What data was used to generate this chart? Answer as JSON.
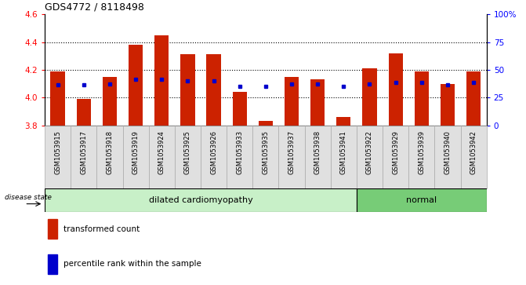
{
  "title": "GDS4772 / 8118498",
  "samples": [
    "GSM1053915",
    "GSM1053917",
    "GSM1053918",
    "GSM1053919",
    "GSM1053924",
    "GSM1053925",
    "GSM1053926",
    "GSM1053933",
    "GSM1053935",
    "GSM1053937",
    "GSM1053938",
    "GSM1053941",
    "GSM1053922",
    "GSM1053929",
    "GSM1053939",
    "GSM1053940",
    "GSM1053942"
  ],
  "bar_values": [
    4.19,
    3.99,
    4.15,
    4.38,
    4.45,
    4.31,
    4.31,
    4.04,
    3.83,
    4.15,
    4.13,
    3.86,
    4.21,
    4.32,
    4.19,
    4.1,
    4.19
  ],
  "blue_dot_values": [
    4.09,
    4.09,
    4.1,
    4.13,
    4.13,
    4.12,
    4.12,
    4.08,
    4.08,
    4.1,
    4.1,
    4.08,
    4.1,
    4.11,
    4.11,
    4.09,
    4.11
  ],
  "disease_states": [
    "dilated cardiomyopathy",
    "dilated cardiomyopathy",
    "dilated cardiomyopathy",
    "dilated cardiomyopathy",
    "dilated cardiomyopathy",
    "dilated cardiomyopathy",
    "dilated cardiomyopathy",
    "dilated cardiomyopathy",
    "dilated cardiomyopathy",
    "dilated cardiomyopathy",
    "dilated cardiomyopathy",
    "dilated cardiomyopathy",
    "normal",
    "normal",
    "normal",
    "normal",
    "normal"
  ],
  "ymin": 3.8,
  "ymax": 4.6,
  "yticks_left": [
    3.8,
    4.0,
    4.2,
    4.4,
    4.6
  ],
  "yticks_right": [
    0,
    25,
    50,
    75,
    100
  ],
  "bar_color": "#cc2200",
  "dot_color": "#0000cc",
  "bar_bottom": 3.8,
  "dc_color": "#c8f0c8",
  "normal_color": "#77cc77",
  "bg_color": "#e0e0e0",
  "legend_red": "transformed count",
  "legend_blue": "percentile rank within the sample",
  "disease_label": "disease state"
}
